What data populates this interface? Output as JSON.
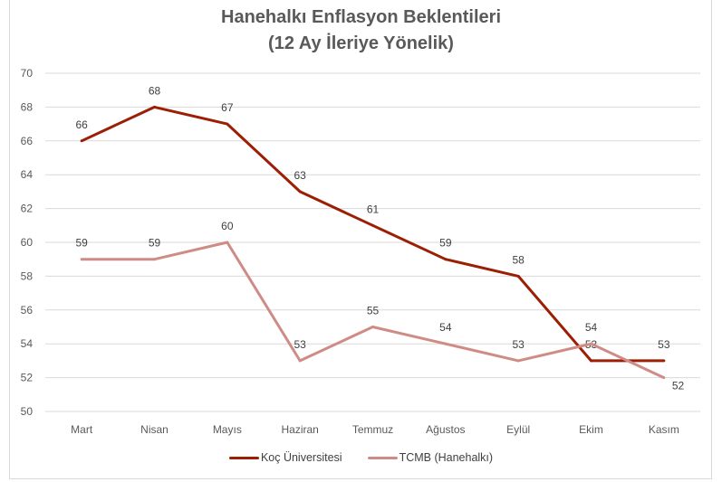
{
  "chart_data": {
    "type": "line",
    "title": "Hanehalkı Enflasyon Beklentileri",
    "subtitle": "(12 Ay İleriye Yönelik)",
    "categories": [
      "Mart",
      "Nisan",
      "Mayıs",
      "Haziran",
      "Temmuz",
      "Ağustos",
      "Eylül",
      "Ekim",
      "Kasım"
    ],
    "series": [
      {
        "name": "Koç Üniversitesi",
        "values": [
          66,
          68,
          67,
          63,
          61,
          59,
          58,
          53,
          53
        ],
        "color": "#9C1F05"
      },
      {
        "name": "TCMB (Hanehalkı)",
        "values": [
          59,
          59,
          60,
          53,
          55,
          54,
          53,
          54,
          52
        ],
        "color": "#CF8C87"
      }
    ],
    "ylim": [
      50,
      70
    ],
    "yticks": [
      "50",
      "52",
      "54",
      "56",
      "58",
      "60",
      "62",
      "64",
      "66",
      "68",
      "70"
    ],
    "grid": true,
    "legend_position": "bottom",
    "data_labels": true
  }
}
